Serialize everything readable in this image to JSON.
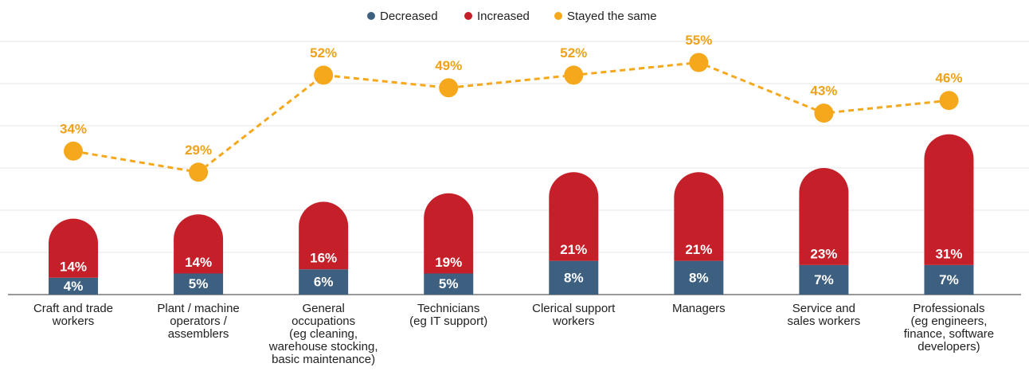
{
  "chart_data": {
    "type": "bar",
    "categories": [
      "Craft and trade\nworkers",
      "Plant / machine\noperators /\nassemblers",
      "General\noccupations\n(eg cleaning,\nwarehouse stocking,\nbasic maintenance)",
      "Technicians\n(eg IT support)",
      "Clerical support\nworkers",
      "Managers",
      "Service and\nsales workers",
      "Professionals\n(eg engineers,\nfinance, software\ndevelopers)"
    ],
    "series": [
      {
        "name": "Decreased",
        "color": "#3d6080",
        "values": [
          4,
          5,
          6,
          5,
          8,
          8,
          7,
          7
        ],
        "value_labels": [
          "4%",
          "5%",
          "6%",
          "5%",
          "8%",
          "8%",
          "7%",
          "7%"
        ]
      },
      {
        "name": "Increased",
        "color": "#c5202a",
        "values": [
          14,
          14,
          16,
          19,
          21,
          21,
          23,
          31
        ],
        "value_labels": [
          "14%",
          "14%",
          "16%",
          "19%",
          "21%",
          "21%",
          "23%",
          "31%"
        ]
      },
      {
        "name": "Stayed the same",
        "color": "#f5a81c",
        "type": "line",
        "values": [
          34,
          29,
          52,
          49,
          52,
          55,
          43,
          46
        ],
        "value_labels": [
          "34%",
          "29%",
          "52%",
          "49%",
          "52%",
          "55%",
          "43%",
          "46%"
        ]
      }
    ],
    "ylim": [
      0,
      60
    ],
    "yticks": [
      0,
      10,
      20,
      30,
      40,
      50,
      60
    ],
    "grid": true,
    "legend": "top"
  }
}
